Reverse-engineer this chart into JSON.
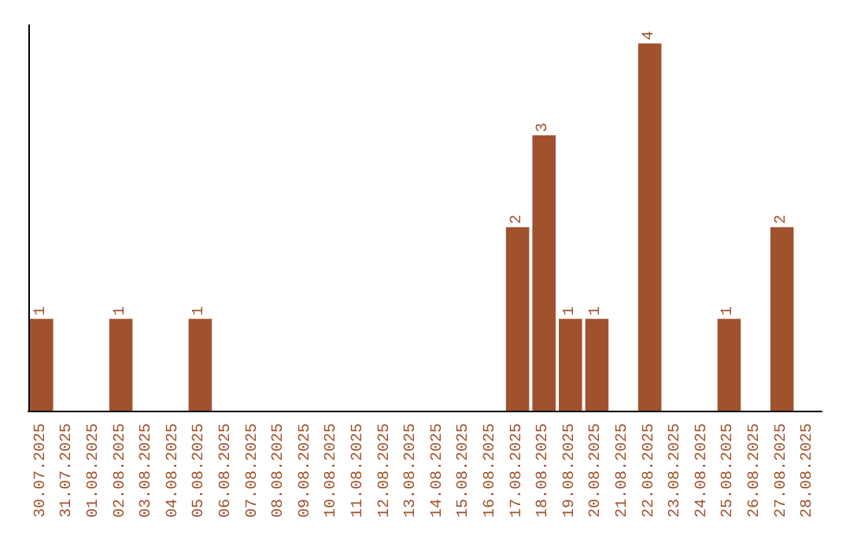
{
  "chart_data": {
    "type": "bar",
    "categories": [
      "30.07.2025",
      "31.07.2025",
      "01.08.2025",
      "02.08.2025",
      "03.08.2025",
      "04.08.2025",
      "05.08.2025",
      "06.08.2025",
      "07.08.2025",
      "08.08.2025",
      "09.08.2025",
      "10.08.2025",
      "11.08.2025",
      "12.08.2025",
      "13.08.2025",
      "14.08.2025",
      "15.08.2025",
      "16.08.2025",
      "17.08.2025",
      "18.08.2025",
      "19.08.2025",
      "20.08.2025",
      "21.08.2025",
      "22.08.2025",
      "23.08.2025",
      "24.08.2025",
      "25.08.2025",
      "26.08.2025",
      "27.08.2025",
      "28.08.2025"
    ],
    "values": [
      1,
      0,
      0,
      1,
      0,
      0,
      1,
      0,
      0,
      0,
      0,
      0,
      0,
      0,
      0,
      0,
      0,
      0,
      2,
      3,
      1,
      1,
      0,
      4,
      0,
      0,
      1,
      0,
      2,
      0
    ],
    "value_labels": [
      "1",
      null,
      null,
      "1",
      null,
      null,
      "1",
      null,
      null,
      null,
      null,
      null,
      null,
      null,
      null,
      null,
      null,
      null,
      "2",
      "3",
      "1",
      "1",
      null,
      "4",
      null,
      null,
      "1",
      null,
      "2",
      null
    ],
    "color": "#a0522d",
    "tick_labels": "x"
  }
}
